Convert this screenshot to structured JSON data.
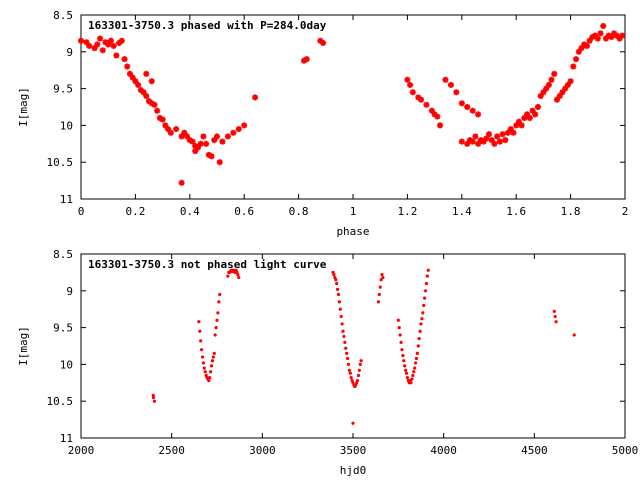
{
  "chart_data": [
    {
      "type": "scatter",
      "title": "163301-3750.3 phased with P=284.0day",
      "xlabel": "phase",
      "ylabel": "I[mag]",
      "xlim": [
        0,
        2
      ],
      "ylim": [
        8.5,
        11
      ],
      "y_inverted": true,
      "xticks": [
        "0",
        "0.2",
        "0.4",
        "0.6",
        "0.8",
        "1",
        "1.2",
        "1.4",
        "1.6",
        "1.8",
        "2"
      ],
      "yticks": [
        "8.5",
        "9",
        "9.5",
        "10",
        "10.5",
        "11"
      ],
      "marker_color": "#ff0000",
      "marker": "star",
      "points": [
        [
          0.0,
          8.85
        ],
        [
          0.02,
          8.87
        ],
        [
          0.03,
          8.92
        ],
        [
          0.05,
          8.95
        ],
        [
          0.06,
          8.9
        ],
        [
          0.07,
          8.82
        ],
        [
          0.08,
          8.98
        ],
        [
          0.1,
          8.9
        ],
        [
          0.12,
          8.92
        ],
        [
          0.13,
          9.05
        ],
        [
          0.14,
          8.88
        ],
        [
          0.15,
          8.85
        ],
        [
          0.16,
          9.1
        ],
        [
          0.17,
          9.2
        ],
        [
          0.18,
          9.3
        ],
        [
          0.19,
          9.35
        ],
        [
          0.2,
          9.4
        ],
        [
          0.21,
          9.45
        ],
        [
          0.22,
          9.52
        ],
        [
          0.23,
          9.55
        ],
        [
          0.24,
          9.6
        ],
        [
          0.25,
          9.67
        ],
        [
          0.26,
          9.7
        ],
        [
          0.27,
          9.72
        ],
        [
          0.28,
          9.8
        ],
        [
          0.29,
          9.9
        ],
        [
          0.3,
          9.92
        ],
        [
          0.31,
          10.0
        ],
        [
          0.32,
          10.05
        ],
        [
          0.33,
          10.1
        ],
        [
          0.35,
          10.05
        ],
        [
          0.37,
          10.15
        ],
        [
          0.38,
          10.1
        ],
        [
          0.39,
          10.15
        ],
        [
          0.4,
          10.2
        ],
        [
          0.41,
          10.22
        ],
        [
          0.42,
          10.28
        ],
        [
          0.42,
          10.35
        ],
        [
          0.43,
          10.3
        ],
        [
          0.44,
          10.25
        ],
        [
          0.45,
          10.15
        ],
        [
          0.46,
          10.25
        ],
        [
          0.47,
          10.4
        ],
        [
          0.48,
          10.42
        ],
        [
          0.49,
          10.2
        ],
        [
          0.5,
          10.15
        ],
        [
          0.51,
          10.5
        ],
        [
          0.52,
          10.22
        ],
        [
          0.54,
          10.15
        ],
        [
          0.56,
          10.1
        ],
        [
          0.58,
          10.05
        ],
        [
          0.6,
          10.0
        ],
        [
          0.64,
          9.62
        ],
        [
          0.82,
          9.12
        ],
        [
          0.83,
          9.1
        ],
        [
          0.88,
          8.85
        ],
        [
          0.89,
          8.88
        ],
        [
          0.37,
          10.78
        ],
        [
          0.24,
          9.3
        ],
        [
          0.26,
          9.4
        ],
        [
          0.11,
          8.85
        ],
        [
          0.09,
          8.87
        ],
        [
          1.2,
          9.38
        ],
        [
          1.21,
          9.45
        ],
        [
          1.22,
          9.55
        ],
        [
          1.24,
          9.62
        ],
        [
          1.25,
          9.65
        ],
        [
          1.27,
          9.72
        ],
        [
          1.29,
          9.8
        ],
        [
          1.3,
          9.85
        ],
        [
          1.31,
          9.88
        ],
        [
          1.32,
          10.0
        ],
        [
          1.34,
          9.38
        ],
        [
          1.36,
          9.45
        ],
        [
          1.38,
          9.55
        ],
        [
          1.4,
          9.7
        ],
        [
          1.42,
          9.75
        ],
        [
          1.44,
          9.8
        ],
        [
          1.46,
          9.85
        ],
        [
          1.4,
          10.22
        ],
        [
          1.42,
          10.25
        ],
        [
          1.43,
          10.2
        ],
        [
          1.44,
          10.22
        ],
        [
          1.45,
          10.15
        ],
        [
          1.46,
          10.25
        ],
        [
          1.47,
          10.2
        ],
        [
          1.48,
          10.22
        ],
        [
          1.49,
          10.18
        ],
        [
          1.5,
          10.12
        ],
        [
          1.51,
          10.2
        ],
        [
          1.52,
          10.25
        ],
        [
          1.53,
          10.15
        ],
        [
          1.54,
          10.22
        ],
        [
          1.55,
          10.12
        ],
        [
          1.56,
          10.2
        ],
        [
          1.57,
          10.1
        ],
        [
          1.58,
          10.05
        ],
        [
          1.59,
          10.1
        ],
        [
          1.6,
          10.0
        ],
        [
          1.61,
          9.95
        ],
        [
          1.62,
          10.0
        ],
        [
          1.63,
          9.9
        ],
        [
          1.64,
          9.85
        ],
        [
          1.65,
          9.9
        ],
        [
          1.66,
          9.8
        ],
        [
          1.67,
          9.85
        ],
        [
          1.68,
          9.75
        ],
        [
          1.7,
          9.55
        ],
        [
          1.71,
          9.5
        ],
        [
          1.72,
          9.45
        ],
        [
          1.73,
          9.38
        ],
        [
          1.74,
          9.3
        ],
        [
          1.75,
          9.65
        ],
        [
          1.76,
          9.6
        ],
        [
          1.77,
          9.55
        ],
        [
          1.78,
          9.5
        ],
        [
          1.79,
          9.45
        ],
        [
          1.8,
          9.4
        ],
        [
          1.81,
          9.2
        ],
        [
          1.82,
          9.1
        ],
        [
          1.83,
          9.0
        ],
        [
          1.84,
          8.95
        ],
        [
          1.85,
          8.9
        ],
        [
          1.86,
          8.92
        ],
        [
          1.87,
          8.85
        ],
        [
          1.88,
          8.8
        ],
        [
          1.89,
          8.78
        ],
        [
          1.9,
          8.82
        ],
        [
          1.91,
          8.75
        ],
        [
          1.92,
          8.65
        ],
        [
          1.93,
          8.82
        ],
        [
          1.94,
          8.78
        ],
        [
          1.95,
          8.8
        ],
        [
          1.96,
          8.75
        ],
        [
          1.97,
          8.78
        ],
        [
          1.98,
          8.82
        ],
        [
          1.99,
          8.78
        ],
        [
          1.69,
          9.6
        ]
      ]
    },
    {
      "type": "scatter",
      "title": "163301-3750.3 not phased light curve",
      "xlabel": "hjd0",
      "ylabel": "I[mag]",
      "xlim": [
        2000,
        5000
      ],
      "ylim": [
        8.5,
        11
      ],
      "y_inverted": true,
      "xticks": [
        "2000",
        "2500",
        "3000",
        "3500",
        "4000",
        "4500",
        "5000"
      ],
      "yticks": [
        "8.5",
        "9",
        "9.5",
        "10",
        "10.5",
        "11"
      ],
      "marker_color": "#ff0000",
      "marker": "dot",
      "points": [
        [
          2398,
          10.42
        ],
        [
          2400,
          10.45
        ],
        [
          2405,
          10.5
        ],
        [
          2650,
          9.42
        ],
        [
          2655,
          9.55
        ],
        [
          2660,
          9.68
        ],
        [
          2665,
          9.8
        ],
        [
          2670,
          9.9
        ],
        [
          2675,
          9.98
        ],
        [
          2680,
          10.05
        ],
        [
          2685,
          10.1
        ],
        [
          2690,
          10.15
        ],
        [
          2695,
          10.18
        ],
        [
          2700,
          10.2
        ],
        [
          2705,
          10.22
        ],
        [
          2710,
          10.18
        ],
        [
          2715,
          10.1
        ],
        [
          2720,
          10.02
        ],
        [
          2725,
          9.95
        ],
        [
          2730,
          9.9
        ],
        [
          2735,
          9.85
        ],
        [
          2740,
          9.6
        ],
        [
          2745,
          9.5
        ],
        [
          2750,
          9.4
        ],
        [
          2755,
          9.3
        ],
        [
          2760,
          9.15
        ],
        [
          2765,
          9.05
        ],
        [
          2810,
          8.8
        ],
        [
          2815,
          8.75
        ],
        [
          2820,
          8.75
        ],
        [
          2825,
          8.73
        ],
        [
          2830,
          8.72
        ],
        [
          2835,
          8.74
        ],
        [
          2840,
          8.72
        ],
        [
          2845,
          8.73
        ],
        [
          2850,
          8.75
        ],
        [
          2855,
          8.72
        ],
        [
          2860,
          8.75
        ],
        [
          2865,
          8.78
        ],
        [
          2870,
          8.82
        ],
        [
          3390,
          8.75
        ],
        [
          3395,
          8.78
        ],
        [
          3400,
          8.82
        ],
        [
          3405,
          8.85
        ],
        [
          3410,
          8.9
        ],
        [
          3415,
          8.98
        ],
        [
          3420,
          9.05
        ],
        [
          3425,
          9.15
        ],
        [
          3430,
          9.25
        ],
        [
          3435,
          9.35
        ],
        [
          3440,
          9.45
        ],
        [
          3445,
          9.55
        ],
        [
          3450,
          9.62
        ],
        [
          3455,
          9.7
        ],
        [
          3460,
          9.78
        ],
        [
          3465,
          9.85
        ],
        [
          3470,
          9.92
        ],
        [
          3475,
          10.0
        ],
        [
          3480,
          10.08
        ],
        [
          3485,
          10.12
        ],
        [
          3490,
          10.18
        ],
        [
          3495,
          10.22
        ],
        [
          3500,
          10.25
        ],
        [
          3505,
          10.28
        ],
        [
          3510,
          10.3
        ],
        [
          3515,
          10.28
        ],
        [
          3520,
          10.25
        ],
        [
          3525,
          10.22
        ],
        [
          3530,
          10.15
        ],
        [
          3535,
          10.08
        ],
        [
          3540,
          10.0
        ],
        [
          3545,
          9.95
        ],
        [
          3500,
          10.8
        ],
        [
          3640,
          9.15
        ],
        [
          3645,
          9.05
        ],
        [
          3650,
          8.95
        ],
        [
          3655,
          8.85
        ],
        [
          3660,
          8.78
        ],
        [
          3665,
          8.82
        ],
        [
          3750,
          9.4
        ],
        [
          3755,
          9.5
        ],
        [
          3760,
          9.6
        ],
        [
          3765,
          9.7
        ],
        [
          3770,
          9.8
        ],
        [
          3775,
          9.88
        ],
        [
          3780,
          9.95
        ],
        [
          3785,
          10.02
        ],
        [
          3790,
          10.08
        ],
        [
          3795,
          10.12
        ],
        [
          3800,
          10.18
        ],
        [
          3805,
          10.22
        ],
        [
          3810,
          10.25
        ],
        [
          3815,
          10.22
        ],
        [
          3820,
          10.25
        ],
        [
          3825,
          10.2
        ],
        [
          3830,
          10.15
        ],
        [
          3835,
          10.1
        ],
        [
          3840,
          10.05
        ],
        [
          3845,
          9.98
        ],
        [
          3850,
          9.92
        ],
        [
          3855,
          9.85
        ],
        [
          3860,
          9.75
        ],
        [
          3865,
          9.65
        ],
        [
          3870,
          9.55
        ],
        [
          3875,
          9.45
        ],
        [
          3880,
          9.38
        ],
        [
          3885,
          9.3
        ],
        [
          3890,
          9.2
        ],
        [
          3895,
          9.1
        ],
        [
          3900,
          9.0
        ],
        [
          3905,
          8.9
        ],
        [
          3910,
          8.8
        ],
        [
          3915,
          8.72
        ],
        [
          4610,
          9.28
        ],
        [
          4615,
          9.35
        ],
        [
          4620,
          9.42
        ],
        [
          4720,
          9.6
        ]
      ]
    }
  ]
}
